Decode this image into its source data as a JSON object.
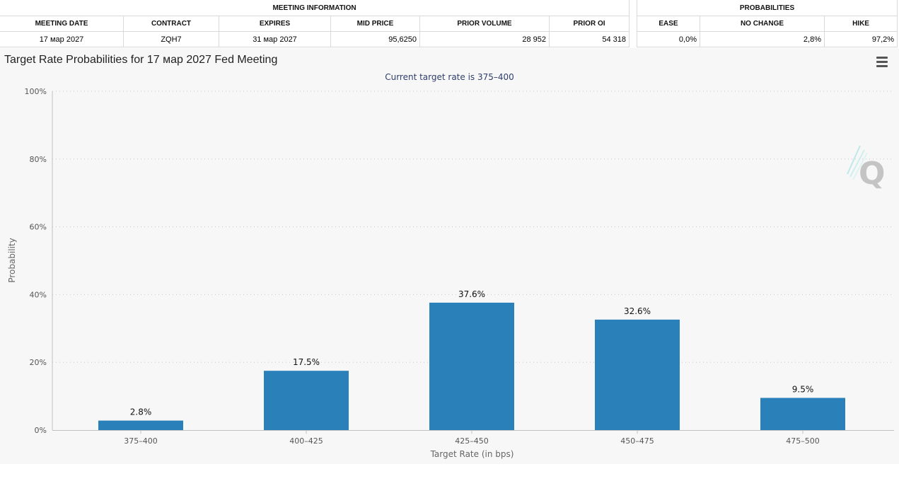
{
  "meeting_info": {
    "group_title": "MEETING INFORMATION",
    "headers": [
      "MEETING DATE",
      "CONTRACT",
      "EXPIRES",
      "MID PRICE",
      "PRIOR VOLUME",
      "PRIOR OI"
    ],
    "values": [
      "17 мар 2027",
      "ZQH7",
      "31 мар 2027",
      "95,6250",
      "28 952",
      "54 318"
    ]
  },
  "probabilities": {
    "group_title": "PROBABILITIES",
    "headers": [
      "EASE",
      "NO CHANGE",
      "HIKE"
    ],
    "values": [
      "0,0%",
      "2,8%",
      "97,2%"
    ]
  },
  "chart": {
    "title": "Target Rate Probabilities for 17 мар 2027 Fed Meeting",
    "subtitle": "Current target rate is 375–400",
    "menu_icon": "hamburger-menu-icon",
    "watermark_icon": "q-logo-icon",
    "bar_color": "#2a80b9"
  },
  "chart_data": {
    "type": "bar",
    "title": "Target Rate Probabilities for 17 мар 2027 Fed Meeting",
    "subtitle": "Current target rate is 375–400",
    "xlabel": "Target Rate (in bps)",
    "ylabel": "Probability",
    "categories": [
      "375–400",
      "400–425",
      "425–450",
      "450–475",
      "475–500"
    ],
    "values": [
      2.8,
      17.5,
      37.6,
      32.6,
      9.5
    ],
    "data_labels": [
      "2.8%",
      "17.5%",
      "37.6%",
      "32.6%",
      "9.5%"
    ],
    "ylim": [
      0,
      100
    ],
    "yticks": [
      0,
      20,
      40,
      60,
      80,
      100
    ],
    "ytick_labels": [
      "0%",
      "20%",
      "40%",
      "60%",
      "80%",
      "100%"
    ],
    "grid": true,
    "legend": "none"
  }
}
